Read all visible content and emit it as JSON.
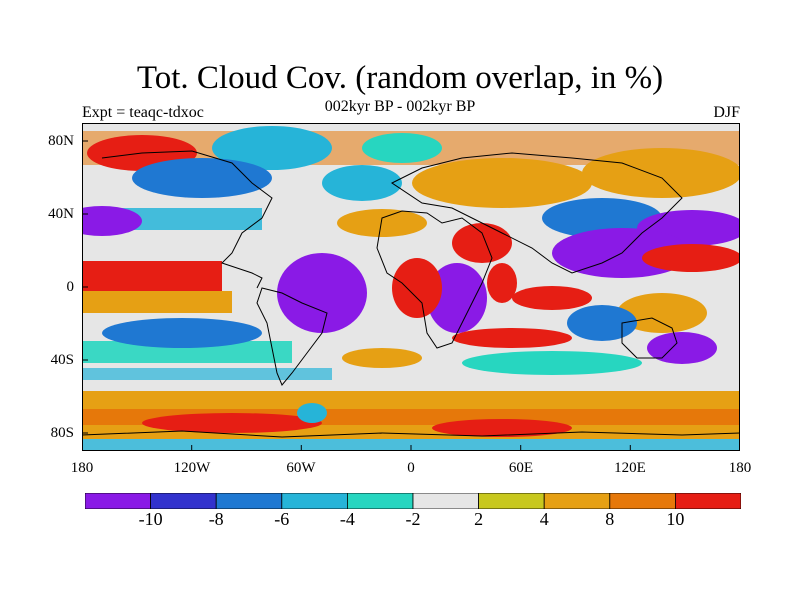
{
  "title": "Tot. Cloud Cov. (random overlap, in %)",
  "subtitle": "002kyr BP - 002kyr BP",
  "left_label": "Expt = teaqc-tdxoc",
  "right_label": "DJF",
  "axes": {
    "lat_ticks": [
      "80N",
      "40N",
      "0",
      "40S",
      "80S"
    ],
    "lon_ticks": [
      "180",
      "120W",
      "60W",
      "0",
      "60E",
      "120E",
      "180"
    ]
  },
  "colorbar": {
    "colors": [
      "#8a1ae6",
      "#3232cd",
      "#1f78d2",
      "#26b4d8",
      "#27d6c0",
      "#e6e6e6",
      "#c8c81e",
      "#e6a014",
      "#e6780a",
      "#e61e14"
    ],
    "labels": [
      "-10",
      "-8",
      "-6",
      "-4",
      "-2",
      "2",
      "4",
      "8",
      "10"
    ]
  }
}
